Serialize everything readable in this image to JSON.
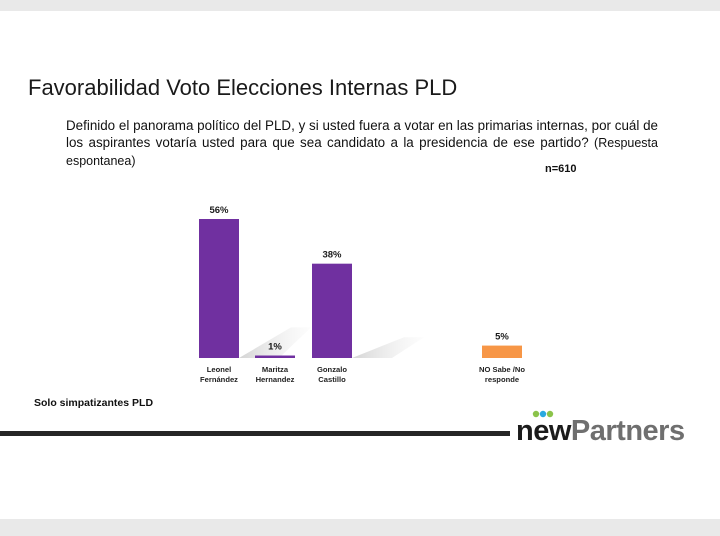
{
  "title": "Favorabilidad Voto Elecciones Internas PLD",
  "question": "Definido el panorama político del PLD, y si usted fuera a votar en las primarias internas, por cuál de los aspirantes votaría usted para que sea candidato a la presidencia de ese partido?",
  "question_note": "(Respuesta espontanea)",
  "sample_size": "n=610",
  "footnote": "Solo simpatizantes PLD",
  "logo": {
    "part1": "new",
    "part2": "Partners"
  },
  "colors": {
    "bar_candidates": "#7030a0",
    "bar_no_response": "#f79646",
    "logo_dot_green": "#8bc34a",
    "logo_dot_blue": "#29a9e0"
  },
  "chart_data": {
    "type": "bar",
    "categories": [
      [
        "Leonel",
        "Fernández"
      ],
      [
        "Maritza",
        "Hernandez"
      ],
      [
        "Gonzalo",
        "Castillo"
      ],
      [
        "NO Sabe /No",
        "responde"
      ]
    ],
    "values": [
      56,
      1,
      38,
      5
    ],
    "value_labels": [
      "56%",
      "1%",
      "38%",
      "5%"
    ],
    "bar_colors": [
      "#7030a0",
      "#7030a0",
      "#7030a0",
      "#f79646"
    ],
    "unit": "%",
    "ylim": [
      0,
      60
    ],
    "grid": false,
    "legend": "none"
  }
}
